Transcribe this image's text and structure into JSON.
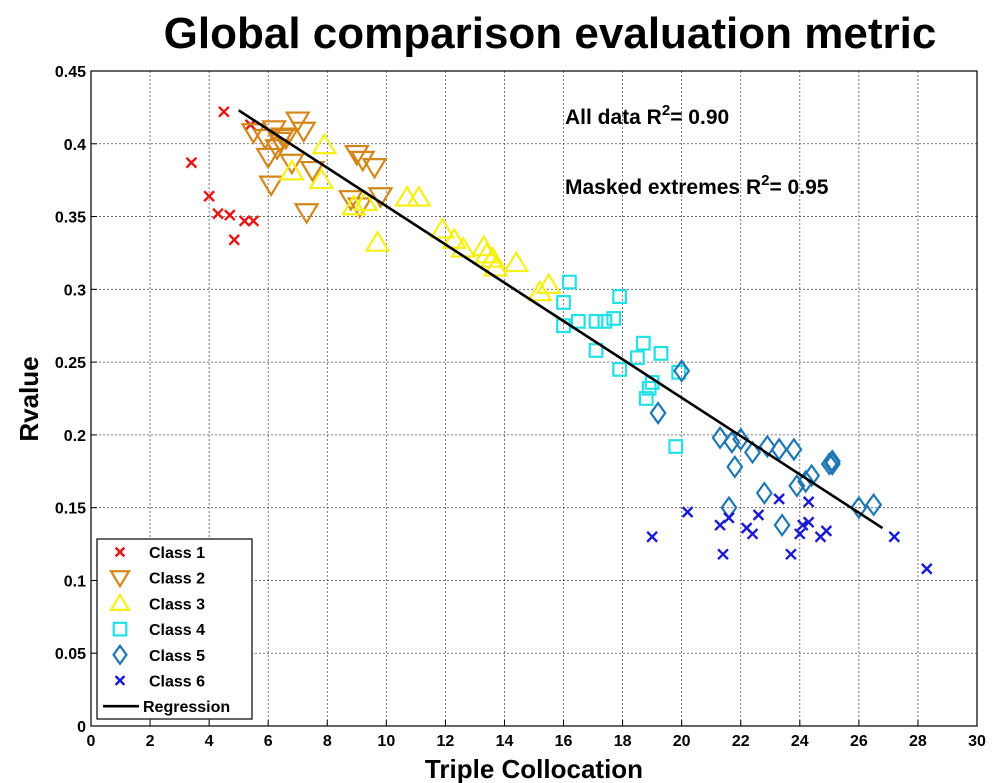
{
  "chart_data": {
    "type": "scatter",
    "title": "Global comparison evaluation metric",
    "xlabel": "Triple Collocation",
    "ylabel": "Rvalue",
    "xlim": [
      0,
      30
    ],
    "ylim": [
      0,
      0.45
    ],
    "xticks": [
      "0",
      "2",
      "4",
      "6",
      "8",
      "10",
      "12",
      "14",
      "16",
      "18",
      "20",
      "22",
      "24",
      "26",
      "28",
      "30"
    ],
    "yticks": [
      "0",
      "0.05",
      "0.1",
      "0.15",
      "0.2",
      "0.25",
      "0.3",
      "0.35",
      "0.4",
      "0.45"
    ],
    "grid": true,
    "legend_position": "bottom-left",
    "annotations": [
      {
        "prefix": "All data R",
        "sup": "2",
        "suffix": "= 0.90"
      },
      {
        "prefix": "Masked extremes R",
        "sup": "2",
        "suffix": "= 0.95"
      }
    ],
    "series": [
      {
        "name": "Class 1",
        "marker": "x",
        "color": "#e81515",
        "points": [
          [
            3.4,
            0.387
          ],
          [
            4.0,
            0.364
          ],
          [
            4.3,
            0.352
          ],
          [
            4.5,
            0.422
          ],
          [
            4.7,
            0.351
          ],
          [
            4.85,
            0.334
          ],
          [
            5.2,
            0.347
          ],
          [
            5.4,
            0.413
          ],
          [
            5.5,
            0.347
          ]
        ]
      },
      {
        "name": "Class 2",
        "marker": "triangle-down",
        "color": "#d4861a",
        "points": [
          [
            5.5,
            0.408
          ],
          [
            5.9,
            0.404
          ],
          [
            6.0,
            0.391
          ],
          [
            6.1,
            0.372
          ],
          [
            6.2,
            0.41
          ],
          [
            6.3,
            0.397
          ],
          [
            6.4,
            0.402
          ],
          [
            6.5,
            0.405
          ],
          [
            6.6,
            0.404
          ],
          [
            6.8,
            0.387
          ],
          [
            7.0,
            0.416
          ],
          [
            7.2,
            0.409
          ],
          [
            7.3,
            0.353
          ],
          [
            7.5,
            0.382
          ],
          [
            8.8,
            0.362
          ],
          [
            9.0,
            0.393
          ],
          [
            9.2,
            0.389
          ],
          [
            9.6,
            0.384
          ],
          [
            9.8,
            0.364
          ],
          [
            9.1,
            0.357
          ]
        ]
      },
      {
        "name": "Class 3",
        "marker": "triangle-up",
        "color": "#f5f016",
        "points": [
          [
            6.8,
            0.381
          ],
          [
            7.8,
            0.375
          ],
          [
            7.9,
            0.399
          ],
          [
            8.9,
            0.357
          ],
          [
            9.3,
            0.36
          ],
          [
            9.7,
            0.332
          ],
          [
            10.7,
            0.363
          ],
          [
            11.1,
            0.363
          ],
          [
            11.9,
            0.341
          ],
          [
            12.3,
            0.334
          ],
          [
            12.6,
            0.328
          ],
          [
            13.3,
            0.329
          ],
          [
            13.4,
            0.324
          ],
          [
            13.6,
            0.321
          ],
          [
            13.7,
            0.315
          ],
          [
            14.4,
            0.318
          ],
          [
            15.2,
            0.298
          ],
          [
            15.5,
            0.303
          ]
        ]
      },
      {
        "name": "Class 4",
        "marker": "square",
        "color": "#23e0e6",
        "points": [
          [
            16.0,
            0.291
          ],
          [
            16.0,
            0.275
          ],
          [
            16.2,
            0.305
          ],
          [
            16.5,
            0.278
          ],
          [
            17.1,
            0.278
          ],
          [
            17.1,
            0.258
          ],
          [
            17.4,
            0.278
          ],
          [
            17.7,
            0.28
          ],
          [
            17.9,
            0.295
          ],
          [
            17.9,
            0.245
          ],
          [
            18.5,
            0.253
          ],
          [
            18.7,
            0.263
          ],
          [
            18.8,
            0.225
          ],
          [
            18.9,
            0.232
          ],
          [
            19.0,
            0.236
          ],
          [
            19.3,
            0.256
          ],
          [
            19.8,
            0.192
          ],
          [
            19.9,
            0.243
          ]
        ]
      },
      {
        "name": "Class 5",
        "marker": "diamond",
        "color": "#1f78b4",
        "points": [
          [
            19.2,
            0.215
          ],
          [
            20.0,
            0.244
          ],
          [
            21.3,
            0.198
          ],
          [
            21.6,
            0.15
          ],
          [
            21.7,
            0.195
          ],
          [
            21.8,
            0.178
          ],
          [
            22.0,
            0.197
          ],
          [
            22.4,
            0.188
          ],
          [
            22.8,
            0.16
          ],
          [
            22.9,
            0.192
          ],
          [
            23.3,
            0.19
          ],
          [
            23.4,
            0.138
          ],
          [
            23.8,
            0.19
          ],
          [
            23.9,
            0.165
          ],
          [
            24.2,
            0.168
          ],
          [
            24.4,
            0.172
          ],
          [
            25.0,
            0.18
          ],
          [
            25.1,
            0.182
          ],
          [
            25.1,
            0.18
          ],
          [
            26.0,
            0.15
          ],
          [
            26.5,
            0.152
          ]
        ]
      },
      {
        "name": "Class 6",
        "marker": "x",
        "color": "#1a1ad4",
        "points": [
          [
            19.0,
            0.13
          ],
          [
            20.2,
            0.147
          ],
          [
            21.3,
            0.138
          ],
          [
            21.4,
            0.118
          ],
          [
            21.6,
            0.143
          ],
          [
            22.2,
            0.136
          ],
          [
            22.4,
            0.132
          ],
          [
            22.6,
            0.145
          ],
          [
            23.3,
            0.156
          ],
          [
            23.7,
            0.118
          ],
          [
            24.0,
            0.132
          ],
          [
            24.1,
            0.138
          ],
          [
            24.3,
            0.14
          ],
          [
            24.3,
            0.154
          ],
          [
            24.7,
            0.13
          ],
          [
            24.9,
            0.134
          ],
          [
            27.2,
            0.13
          ],
          [
            28.3,
            0.108
          ]
        ]
      }
    ],
    "regression": {
      "name": "Regression",
      "color": "#000000",
      "from": [
        5.0,
        0.423
      ],
      "to": [
        26.8,
        0.136
      ]
    }
  }
}
